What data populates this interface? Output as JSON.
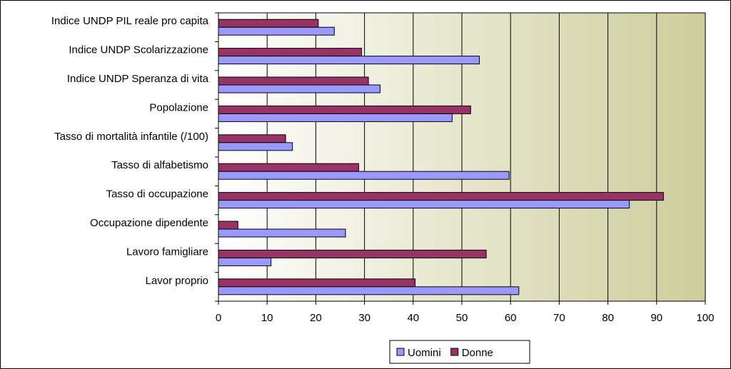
{
  "chart_data": {
    "type": "bar",
    "orientation": "horizontal",
    "categories": [
      "Indice UNDP PIL reale pro capita",
      "Indice UNDP Scolarizzazione",
      "Indice UNDP Speranza di vita",
      "Popolazione",
      "Tasso di mortalità infantile (/100)",
      "Tasso di alfabetismo",
      "Tasso di occupazione",
      "Occupazione dipendente",
      "Lavoro famigliare",
      "Lavor proprio"
    ],
    "series": [
      {
        "name": "Uomini",
        "color": "#9999ff",
        "values": [
          23.8,
          53.6,
          33.2,
          48.0,
          15.2,
          59.7,
          84.4,
          26.1,
          10.8,
          61.7
        ]
      },
      {
        "name": "Donne",
        "color": "#993366",
        "values": [
          20.5,
          29.4,
          30.8,
          51.8,
          13.8,
          28.8,
          91.4,
          4.0,
          55.0,
          40.4
        ]
      }
    ],
    "xlim": [
      0,
      100
    ],
    "x_ticks": [
      "0",
      "10",
      "20",
      "30",
      "40",
      "50",
      "60",
      "70",
      "80",
      "90",
      "100"
    ],
    "grid": true,
    "plot_background": "#cdcd9c",
    "legend_position": "bottom"
  }
}
